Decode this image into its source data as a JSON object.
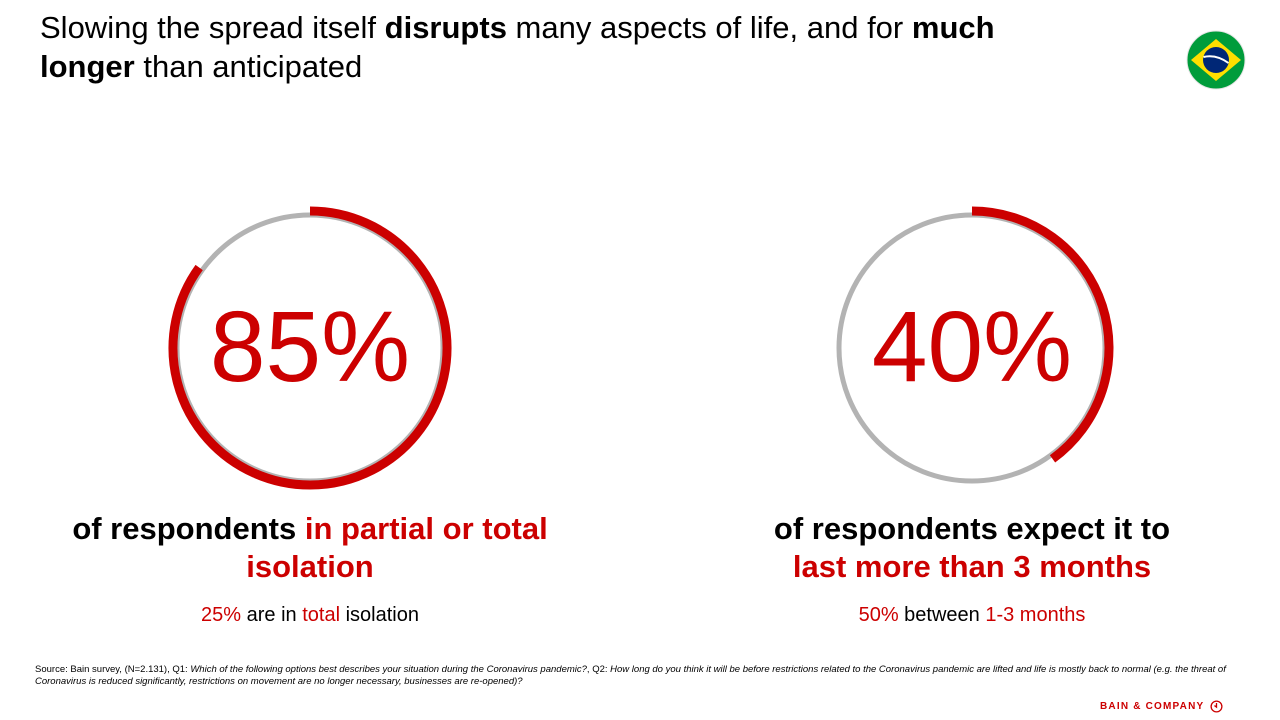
{
  "title": {
    "part1": "Slowing the spread itself ",
    "bold1": "disrupts",
    "part2": " many aspects of life, and for ",
    "bold2": "much longer",
    "part3": " than anticipated"
  },
  "colors": {
    "accent": "#cc0000",
    "track": "#b3b3b3",
    "flag_green": "#009c3b",
    "flag_yellow": "#ffdf00",
    "flag_blue": "#002776"
  },
  "chart_data": [
    {
      "type": "donut",
      "value": 85,
      "unit": "%",
      "label": "85%",
      "caption_black": "of respondents ",
      "caption_red": "in partial or total isolation",
      "sub": {
        "value": "25%",
        "text1": " are in ",
        "highlight": "total",
        "text2": " isolation"
      }
    },
    {
      "type": "donut",
      "value": 40,
      "unit": "%",
      "label": "40%",
      "caption_black": "of respondents expect it to",
      "caption_red": "last more than 3 months",
      "sub": {
        "value": "50%",
        "text1": " between ",
        "highlight": "1-3 months",
        "text2": ""
      }
    }
  ],
  "source": {
    "prefix": "Source: Bain survey, (N=2.131), Q1: ",
    "q1": "Which of the following options best describes your situation during the Coronavirus pandemic?",
    "mid": ", Q2: ",
    "q2": "How long do you think it will be before restrictions related to the Coronavirus pandemic are lifted and life is mostly back to normal (e.g. the threat of Coronavirus is reduced significantly, restrictions on movement are no longer necessary, businesses are re-opened)?"
  },
  "logo": {
    "text": "BAIN & COMPANY",
    "icon": "bain-circle-icon"
  },
  "flag": {
    "icon": "brazil-flag-icon"
  }
}
